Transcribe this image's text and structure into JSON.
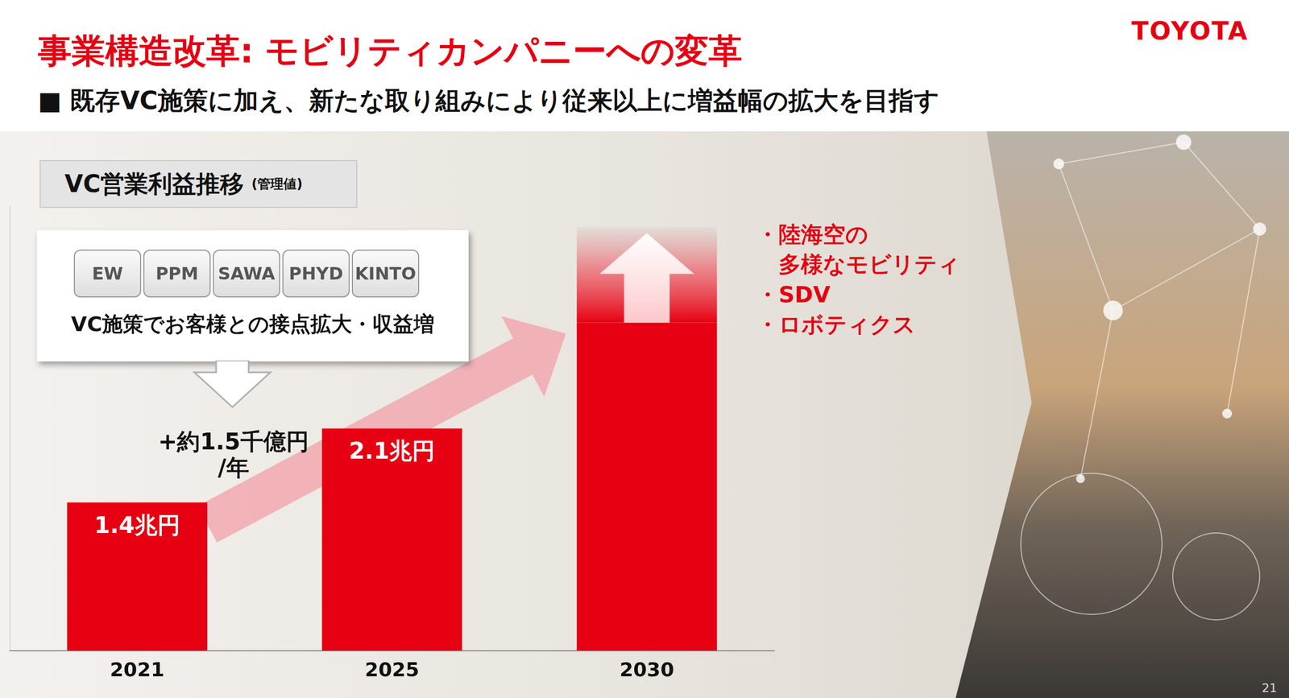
{
  "header": {
    "title": "事業構造改革: モビリティカンパニーへの変革",
    "subtitle": "■ 既存VC施策に加え、新たな取り組みにより従来以上に増益幅の拡大を目指す",
    "logo": "TOYOTA"
  },
  "panel_label": {
    "text": "VC営業利益推移",
    "note": "(管理値)"
  },
  "callout": {
    "tags": [
      "EW",
      "PPM",
      "SAWA",
      "PHYD",
      "KINTO"
    ],
    "text": "VC施策でお客様との接点拡大・収益増"
  },
  "annotation_lines": [
    "+約1.5千億円",
    "/年"
  ],
  "bullets": [
    [
      "・陸海空の",
      "多様なモビリティ"
    ],
    [
      "・SDV"
    ],
    [
      "・ロボティクス"
    ]
  ],
  "page_number": "21",
  "chart_data": {
    "type": "bar",
    "categories": [
      "2021",
      "2025",
      "2030"
    ],
    "values": [
      1.4,
      2.1,
      3.1
    ],
    "value_labels": [
      "1.4兆円",
      "2.1兆円",
      null
    ],
    "data_labels": true,
    "color": "#e60012",
    "ylim": [
      0,
      4.2
    ],
    "grid": false,
    "tick_labels": "x"
  }
}
